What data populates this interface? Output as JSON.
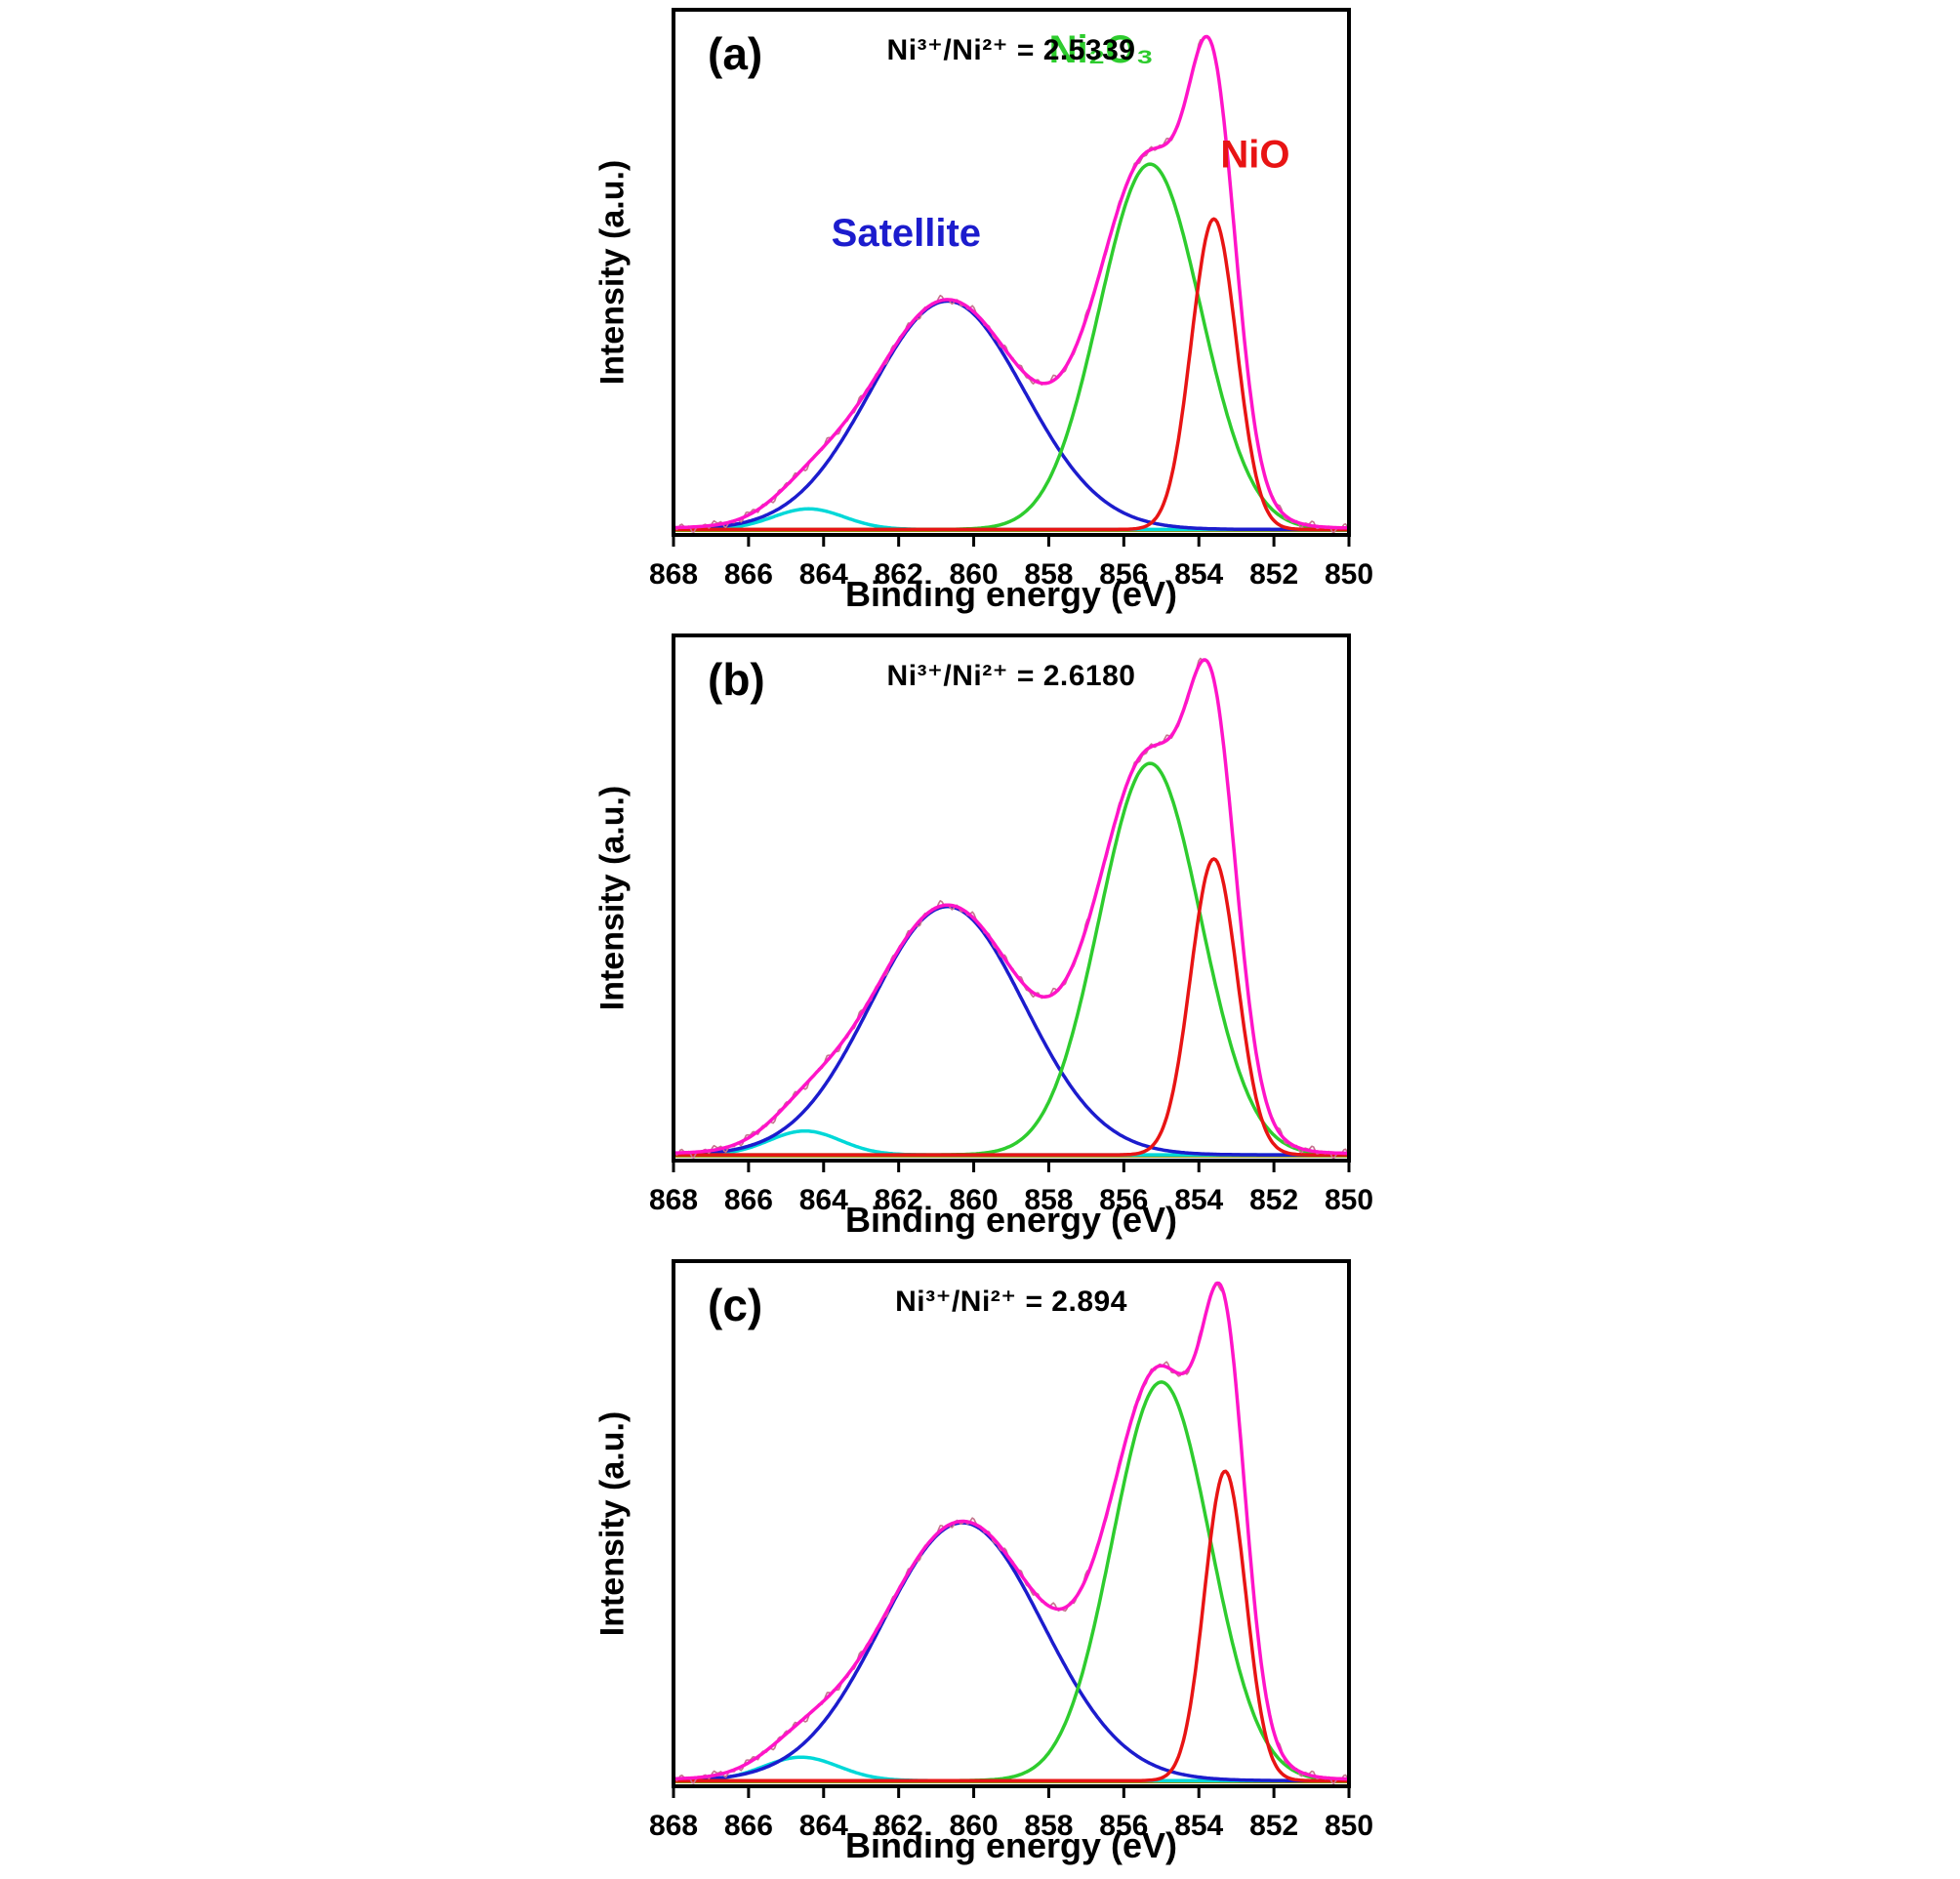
{
  "chart_data": [
    {
      "type": "line",
      "panel": "(a)",
      "title": "Ni³⁺/Ni²⁺ = 2.5339",
      "xlabel": "Binding energy (eV)",
      "ylabel": "Intensity (a.u.)",
      "x_range": [
        868,
        850
      ],
      "x_ticks": [
        868,
        866,
        864,
        862,
        860,
        858,
        856,
        854,
        852,
        850
      ],
      "ylim": [
        0,
        1.15
      ],
      "legend_position": "none",
      "grid": false,
      "series": [
        {
          "name": "Background",
          "role": "component",
          "color": "#8f8f00",
          "baseline": 0.01,
          "peaks": []
        },
        {
          "name": "Satellite minor",
          "role": "component",
          "color": "#00d8d8",
          "baseline": 0.012,
          "peaks": [
            {
              "center": 864.4,
              "amplitude": 0.045,
              "sigma": 0.95
            }
          ]
        },
        {
          "name": "Satellite",
          "role": "component",
          "color": "#1c1ccd",
          "baseline": 0.012,
          "peaks": [
            {
              "center": 860.7,
              "amplitude": 0.5,
              "sigma": 2.05
            }
          ]
        },
        {
          "name": "Ni₂O₃",
          "role": "component",
          "color": "#2ecc2e",
          "baseline": 0.012,
          "peaks": [
            {
              "center": 855.3,
              "amplitude": 0.8,
              "sigma": 1.35
            }
          ]
        },
        {
          "name": "NiO",
          "role": "component",
          "color": "#e81414",
          "baseline": 0.012,
          "peaks": [
            {
              "center": 853.6,
              "amplitude": 0.68,
              "sigma": 0.6
            }
          ]
        },
        {
          "name": "Raw data",
          "role": "raw",
          "color": "#c4748c",
          "baseline": 0.015,
          "noise": 0.012
        },
        {
          "name": "Envelope",
          "role": "sum",
          "color": "#ff14c8",
          "baseline": 0.015
        }
      ],
      "annotations": [
        {
          "text": "Satellite",
          "color": "#1c1ccd",
          "x": 861.8,
          "y": 0.55
        },
        {
          "text": "Ni₂O₃",
          "color": "#2ecc2e",
          "x": 856.6,
          "y": 0.9
        },
        {
          "text": "NiO",
          "color": "#e81414",
          "x": 852.5,
          "y": 0.7
        }
      ]
    },
    {
      "type": "line",
      "panel": "(b)",
      "title": "Ni³⁺/Ni²⁺ = 2.6180",
      "xlabel": "Binding energy (eV)",
      "ylabel": "Intensity (a.u.)",
      "x_range": [
        868,
        850
      ],
      "x_ticks": [
        868,
        866,
        864,
        862,
        860,
        858,
        856,
        854,
        852,
        850
      ],
      "ylim": [
        0,
        1.1
      ],
      "legend_position": "none",
      "grid": false,
      "series": [
        {
          "name": "Background",
          "role": "component",
          "color": "#8f8f00",
          "baseline": 0.01,
          "peaks": []
        },
        {
          "name": "Satellite minor",
          "role": "component",
          "color": "#00d8d8",
          "baseline": 0.012,
          "peaks": [
            {
              "center": 864.5,
              "amplitude": 0.05,
              "sigma": 0.95
            }
          ]
        },
        {
          "name": "Satellite",
          "role": "component",
          "color": "#1c1ccd",
          "baseline": 0.012,
          "peaks": [
            {
              "center": 860.7,
              "amplitude": 0.52,
              "sigma": 2.05
            }
          ]
        },
        {
          "name": "Ni₂O₃",
          "role": "component",
          "color": "#2ecc2e",
          "baseline": 0.012,
          "peaks": [
            {
              "center": 855.3,
              "amplitude": 0.82,
              "sigma": 1.35
            }
          ]
        },
        {
          "name": "NiO",
          "role": "component",
          "color": "#e81414",
          "baseline": 0.012,
          "peaks": [
            {
              "center": 853.6,
              "amplitude": 0.62,
              "sigma": 0.62
            }
          ]
        },
        {
          "name": "Raw data",
          "role": "raw",
          "color": "#c4748c",
          "baseline": 0.015,
          "noise": 0.012
        },
        {
          "name": "Envelope",
          "role": "sum",
          "color": "#ff14c8",
          "baseline": 0.015
        }
      ],
      "annotations": []
    },
    {
      "type": "line",
      "panel": "(c)",
      "title": "Ni³⁺/Ni²⁺ = 2.894",
      "xlabel": "Binding energy (eV)",
      "ylabel": "Intensity (a.u.)",
      "x_range": [
        868,
        850
      ],
      "x_ticks": [
        868,
        866,
        864,
        862,
        860,
        858,
        856,
        854,
        852,
        850
      ],
      "ylim": [
        0,
        1.12
      ],
      "legend_position": "none",
      "grid": false,
      "series": [
        {
          "name": "Background",
          "role": "component",
          "color": "#8f8f00",
          "baseline": 0.01,
          "peaks": []
        },
        {
          "name": "Satellite minor",
          "role": "component",
          "color": "#00d8d8",
          "baseline": 0.012,
          "peaks": [
            {
              "center": 864.6,
              "amplitude": 0.05,
              "sigma": 1.0
            }
          ]
        },
        {
          "name": "Satellite",
          "role": "component",
          "color": "#1c1ccd",
          "baseline": 0.012,
          "peaks": [
            {
              "center": 860.3,
              "amplitude": 0.55,
              "sigma": 2.15
            }
          ]
        },
        {
          "name": "Ni₂O₃",
          "role": "component",
          "color": "#2ecc2e",
          "baseline": 0.012,
          "peaks": [
            {
              "center": 855.0,
              "amplitude": 0.85,
              "sigma": 1.3
            }
          ]
        },
        {
          "name": "NiO",
          "role": "component",
          "color": "#e81414",
          "baseline": 0.012,
          "peaks": [
            {
              "center": 853.3,
              "amplitude": 0.66,
              "sigma": 0.55
            }
          ]
        },
        {
          "name": "Raw data",
          "role": "raw",
          "color": "#c4748c",
          "baseline": 0.015,
          "noise": 0.012
        },
        {
          "name": "Envelope",
          "role": "sum",
          "color": "#ff14c8",
          "baseline": 0.015
        }
      ],
      "annotations": []
    }
  ]
}
